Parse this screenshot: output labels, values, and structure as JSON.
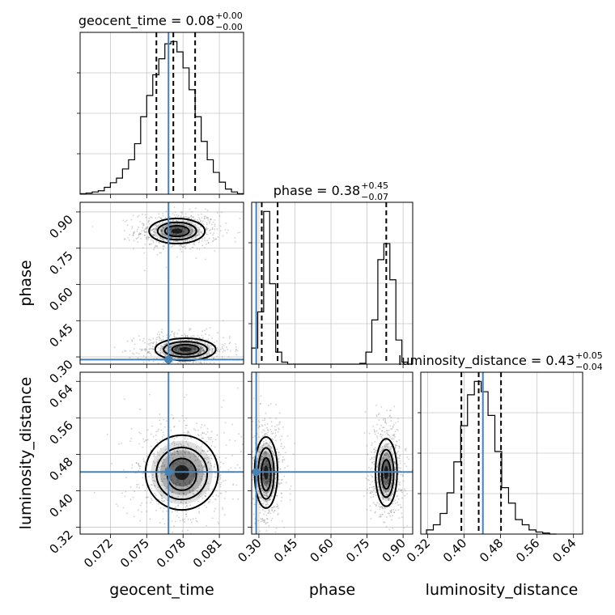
{
  "chart_data": {
    "type": "corner",
    "parameters": [
      "geocent_time",
      "phase",
      "luminosity_distance"
    ],
    "axis_labels": {
      "geocent_time": "geocent_time",
      "phase": "phase",
      "luminosity_distance": "luminosity_distance"
    },
    "ranges": {
      "geocent_time": [
        0.0695,
        0.083
      ],
      "phase": [
        0.27,
        0.94
      ],
      "luminosity_distance": [
        0.305,
        0.66
      ]
    },
    "ticks": {
      "geocent_time": [
        0.072,
        0.075,
        0.078,
        0.081
      ],
      "phase": [
        0.3,
        0.45,
        0.6,
        0.75,
        0.9
      ],
      "luminosity_distance": [
        0.32,
        0.4,
        0.48,
        0.56,
        0.64
      ]
    },
    "tick_labels": {
      "geocent_time": [
        "0.072",
        "0.075",
        "0.078",
        "0.081"
      ],
      "phase": [
        "0.30",
        "0.45",
        "0.60",
        "0.75",
        "0.90"
      ],
      "luminosity_distance": [
        "0.32",
        "0.40",
        "0.48",
        "0.56",
        "0.64"
      ]
    },
    "truths": {
      "geocent_time": 0.0768,
      "phase": 0.289,
      "luminosity_distance": 0.4412
    },
    "titles": [
      {
        "param": "geocent_time",
        "main": "geocent_time = 0.08",
        "plus": "+0.00",
        "minus": "−0.00"
      },
      {
        "param": "phase",
        "main": "phase = 0.38",
        "plus": "+0.45",
        "minus": "−0.07"
      },
      {
        "param": "luminosity_distance",
        "main": "luminosity_distance = 0.43",
        "plus": "+0.05",
        "minus": "−0.04"
      }
    ],
    "histograms": {
      "geocent_time": {
        "edges": [
          0.0695,
          0.07,
          0.0705,
          0.071,
          0.0715,
          0.072,
          0.0725,
          0.073,
          0.0735,
          0.074,
          0.0745,
          0.075,
          0.0755,
          0.076,
          0.0765,
          0.077,
          0.0775,
          0.078,
          0.0785,
          0.079,
          0.0795,
          0.08,
          0.0805,
          0.081,
          0.0815,
          0.082,
          0.0825,
          0.083
        ],
        "counts": [
          1,
          2,
          4,
          6,
          12,
          20,
          28,
          44,
          60,
          88,
          135,
          172,
          208,
          236,
          262,
          266,
          248,
          220,
          182,
          135,
          92,
          60,
          38,
          21,
          9,
          4,
          1
        ]
      },
      "phase": {
        "edges": [
          0.27,
          0.295,
          0.32,
          0.345,
          0.37,
          0.395,
          0.42,
          0.445,
          0.47,
          0.495,
          0.52,
          0.545,
          0.57,
          0.595,
          0.62,
          0.645,
          0.67,
          0.695,
          0.72,
          0.745,
          0.77,
          0.795,
          0.82,
          0.845,
          0.87,
          0.895,
          0.92,
          0.94
        ],
        "counts": [
          40,
          130,
          380,
          200,
          30,
          5,
          0,
          0,
          0,
          0,
          0,
          0,
          0,
          0,
          0,
          0,
          0,
          0,
          2,
          30,
          110,
          260,
          300,
          210,
          60,
          5,
          0
        ]
      },
      "luminosity_distance": {
        "edges": [
          0.3175,
          0.3325,
          0.3475,
          0.3625,
          0.3775,
          0.3925,
          0.4075,
          0.4225,
          0.4375,
          0.4525,
          0.4675,
          0.4825,
          0.4975,
          0.5125,
          0.5275,
          0.5425,
          0.5575,
          0.5725,
          0.5875,
          0.6025
        ],
        "counts": [
          4,
          9,
          20,
          40,
          70,
          105,
          135,
          148,
          138,
          115,
          80,
          45,
          30,
          14,
          9,
          4,
          2,
          1,
          0
        ]
      }
    },
    "quantiles": {
      "geocent_time": [
        0.0758,
        0.0772,
        0.079
      ],
      "phase": [
        0.312,
        0.378,
        0.83
      ],
      "luminosity_distance": [
        0.394,
        0.432,
        0.481
      ]
    },
    "contours_2d": {
      "phase_vs_geocent_time": {
        "ellipses": [
          {
            "cx": 0.0775,
            "cy": 0.821,
            "rx": 0.0023,
            "ry": 0.052
          },
          {
            "cx": 0.0775,
            "cy": 0.821,
            "rx": 0.0016,
            "ry": 0.036
          },
          {
            "cx": 0.0775,
            "cy": 0.821,
            "rx": 0.001,
            "ry": 0.022
          },
          {
            "cx": 0.0782,
            "cy": 0.331,
            "rx": 0.0025,
            "ry": 0.046
          },
          {
            "cx": 0.0782,
            "cy": 0.331,
            "rx": 0.0018,
            "ry": 0.032
          },
          {
            "cx": 0.0782,
            "cy": 0.331,
            "rx": 0.0011,
            "ry": 0.02
          }
        ]
      },
      "luminosity_distance_vs_geocent_time": {
        "ellipses": [
          {
            "cx": 0.0779,
            "cy": 0.44,
            "rx": 0.003,
            "ry": 0.082
          },
          {
            "cx": 0.0779,
            "cy": 0.438,
            "rx": 0.0021,
            "ry": 0.057
          },
          {
            "cx": 0.0779,
            "cy": 0.436,
            "rx": 0.0012,
            "ry": 0.035
          }
        ]
      },
      "luminosity_distance_vs_phase": {
        "ellipses": [
          {
            "cx": 0.33,
            "cy": 0.44,
            "rx": 0.048,
            "ry": 0.078
          },
          {
            "cx": 0.33,
            "cy": 0.438,
            "rx": 0.033,
            "ry": 0.056
          },
          {
            "cx": 0.33,
            "cy": 0.436,
            "rx": 0.02,
            "ry": 0.036
          },
          {
            "cx": 0.83,
            "cy": 0.44,
            "rx": 0.045,
            "ry": 0.074
          },
          {
            "cx": 0.83,
            "cy": 0.438,
            "rx": 0.031,
            "ry": 0.052
          },
          {
            "cx": 0.83,
            "cy": 0.436,
            "rx": 0.018,
            "ry": 0.032
          }
        ]
      }
    },
    "grid": true,
    "colors": {
      "truth": "#4682b4",
      "hist": "#000000",
      "contour": "#000000",
      "samples": "#777777"
    }
  }
}
